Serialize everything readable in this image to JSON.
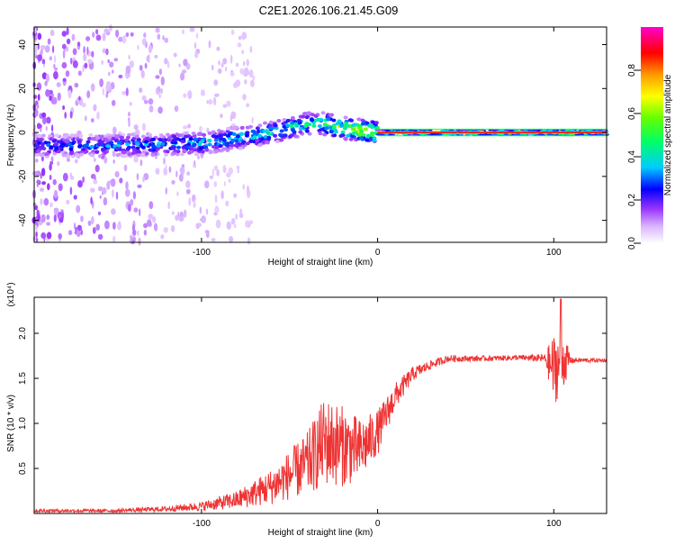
{
  "title": "C2E1.2026.106.21.45.G09",
  "colorbar": {
    "label": "Normalized spectral amplitude",
    "ticks": [
      0.0,
      0.2,
      0.4,
      0.6,
      0.8
    ],
    "tick_labels": [
      "0.0",
      "0.2",
      "0.4",
      "0.6",
      "0.8"
    ],
    "range": [
      0,
      1
    ],
    "colors": [
      "#ffffff",
      "#d9b3ff",
      "#9933ff",
      "#0000ff",
      "#00ccff",
      "#00ff66",
      "#66ff00",
      "#ffff00",
      "#ff9900",
      "#ff0000",
      "#ff00cc"
    ]
  },
  "chart_data": [
    {
      "type": "heatmap",
      "name": "spectrogram",
      "xlabel": "Height of straight line (km)",
      "ylabel": "Frequency (Hz)",
      "xlim": [
        -195,
        130
      ],
      "ylim": [
        -50,
        48
      ],
      "x_ticks": [
        -100,
        0,
        100
      ],
      "x_tick_labels": [
        "-100",
        "0",
        "100"
      ],
      "y_ticks": [
        -40,
        -20,
        0,
        20,
        40
      ],
      "y_tick_labels": [
        "-40",
        "-20",
        "0",
        "20",
        "40"
      ],
      "ridge": {
        "x": [
          -195,
          -150,
          -100,
          -60,
          -40,
          -30,
          -20,
          -10,
          0,
          50,
          100,
          130
        ],
        "freq": [
          -6,
          -6,
          -5,
          0,
          4,
          4,
          2,
          1,
          0,
          0,
          0,
          0
        ],
        "peak_amplitude": [
          0.3,
          0.35,
          0.4,
          0.45,
          0.5,
          0.55,
          0.65,
          0.75,
          0.85,
          0.85,
          0.85,
          0.85
        ]
      }
    },
    {
      "type": "line",
      "name": "snr",
      "xlabel": "Height of straight line (km)",
      "ylabel": "SNR (10 * v/v)",
      "y_scale_label": "(x10⁴)",
      "color": "#ee3333",
      "xlim": [
        -195,
        130
      ],
      "ylim": [
        0,
        2.4
      ],
      "x_ticks": [
        -100,
        0,
        100
      ],
      "x_tick_labels": [
        "-100",
        "0",
        "100"
      ],
      "y_ticks": [
        0.5,
        1.0,
        1.5,
        2.0
      ],
      "y_tick_labels": [
        "0.5",
        "1.0",
        "1.5",
        "2.0"
      ],
      "envelope": {
        "x": [
          -195,
          -150,
          -120,
          -100,
          -80,
          -60,
          -40,
          -30,
          -20,
          -10,
          0,
          10,
          20,
          30,
          40,
          60,
          80,
          95,
          100,
          105,
          110,
          130
        ],
        "y": [
          0.03,
          0.03,
          0.05,
          0.08,
          0.15,
          0.3,
          0.55,
          0.8,
          0.75,
          0.7,
          0.9,
          1.3,
          1.55,
          1.65,
          1.72,
          1.72,
          1.73,
          1.72,
          1.6,
          1.7,
          1.7,
          1.7
        ],
        "noise": [
          0.02,
          0.02,
          0.03,
          0.05,
          0.1,
          0.2,
          0.35,
          0.5,
          0.45,
          0.35,
          0.25,
          0.15,
          0.08,
          0.05,
          0.04,
          0.03,
          0.03,
          0.05,
          0.4,
          0.35,
          0.03,
          0.02
        ]
      },
      "max_peak": {
        "x": 104,
        "y": 2.38
      }
    }
  ]
}
